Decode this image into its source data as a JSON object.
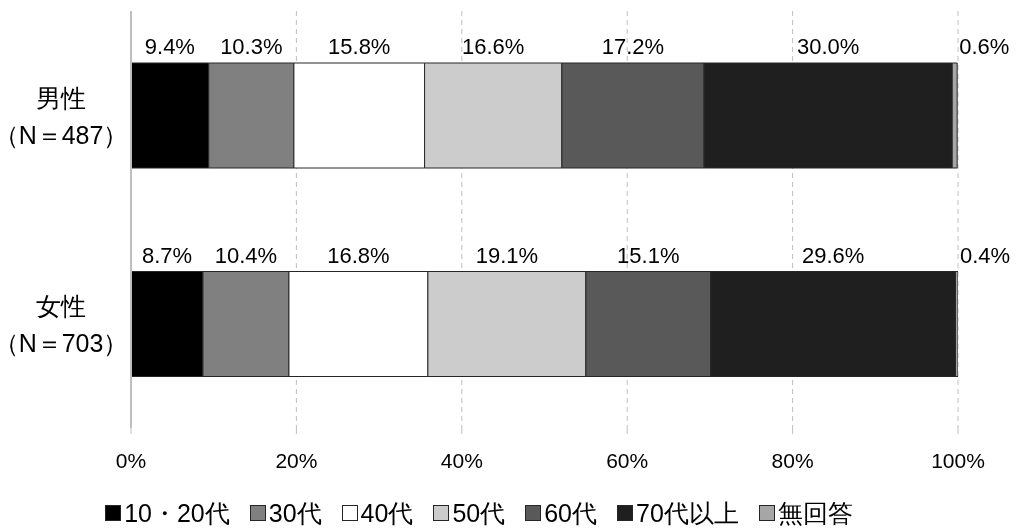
{
  "chart_data": {
    "type": "bar",
    "orientation": "horizontal",
    "stacked": true,
    "categories": [
      "男性（N＝487）",
      "女性（N＝703）"
    ],
    "series": [
      {
        "name": "10・20代",
        "color": "#000000",
        "values": [
          9.4,
          8.7
        ],
        "value_labels": [
          "9.4%",
          "8.7%"
        ]
      },
      {
        "name": "30代",
        "color": "#808080",
        "values": [
          10.3,
          10.4
        ],
        "value_labels": [
          "10.3%",
          "10.4%"
        ]
      },
      {
        "name": "40代",
        "color": "#ffffff",
        "values": [
          15.8,
          16.8
        ],
        "value_labels": [
          "15.8%",
          "16.8%"
        ]
      },
      {
        "name": "50代",
        "color": "#cccccc",
        "values": [
          16.6,
          19.1
        ],
        "value_labels": [
          "16.6%",
          "19.1%"
        ]
      },
      {
        "name": "60代",
        "color": "#595959",
        "values": [
          17.2,
          15.1
        ],
        "value_labels": [
          "17.2%",
          "15.1%"
        ]
      },
      {
        "name": "70代以上",
        "color": "#1f1f1f",
        "values": [
          30.0,
          29.6
        ],
        "value_labels": [
          "30.0%",
          "29.6%"
        ]
      },
      {
        "name": "無回答",
        "color": "#a6a6a6",
        "values": [
          0.6,
          0.4
        ],
        "value_labels": [
          "0.6%",
          "0.4%"
        ]
      }
    ],
    "xlim": [
      0,
      100
    ],
    "xticks": [
      {
        "value": 0,
        "label": "0%"
      },
      {
        "value": 20,
        "label": "20%"
      },
      {
        "value": 40,
        "label": "40%"
      },
      {
        "value": 60,
        "label": "60%"
      },
      {
        "value": 80,
        "label": "80%"
      },
      {
        "value": 100,
        "label": "100%"
      }
    ],
    "grid": "x",
    "legend": "bottom"
  }
}
